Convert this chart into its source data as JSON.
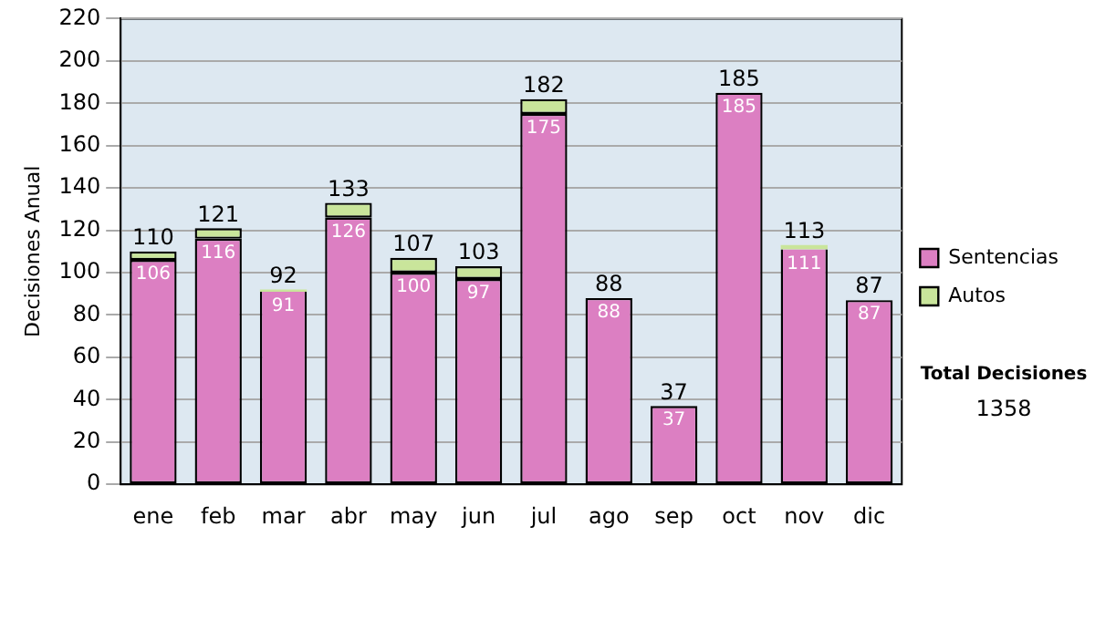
{
  "chart_data": {
    "type": "bar",
    "stacked": true,
    "ylabel": "Decisiones Anual",
    "categories": [
      "ene",
      "feb",
      "mar",
      "abr",
      "may",
      "jun",
      "jul",
      "ago",
      "sep",
      "oct",
      "nov",
      "dic"
    ],
    "series": [
      {
        "name": "Sentencias",
        "color": "#dc7fc2",
        "values": [
          106,
          116,
          91,
          126,
          100,
          97,
          175,
          88,
          37,
          185,
          111,
          87
        ],
        "value_labels": [
          "106",
          "116",
          "91",
          "126",
          "100",
          "97",
          "175",
          "88",
          "37",
          "185",
          "111",
          "87"
        ]
      },
      {
        "name": "Autos",
        "color": "#c9e59b",
        "values": [
          4,
          5,
          1,
          7,
          7,
          6,
          7,
          0,
          0,
          0,
          2,
          0
        ]
      }
    ],
    "totals": [
      "110",
      "121",
      "92",
      "133",
      "107",
      "103",
      "182",
      "88",
      "37",
      "185",
      "113",
      "87"
    ],
    "ylim": [
      0,
      220
    ],
    "yticks": [
      0,
      20,
      40,
      60,
      80,
      100,
      120,
      140,
      160,
      180,
      200,
      220
    ],
    "grid": "y",
    "legend": "right",
    "annotations": [
      "Total Decisiones",
      "1358"
    ]
  }
}
